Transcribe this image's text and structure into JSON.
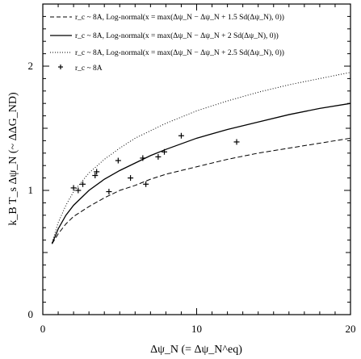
{
  "chart_data": {
    "type": "line",
    "xlabel": "Δψ_N (= Δψ_N^eq)",
    "ylabel": "k_B T_s Δψ_N (~ ΔΔG_ND)",
    "xlim": [
      0,
      20
    ],
    "ylim": [
      0,
      2.5
    ],
    "x_ticks": [
      "0",
      "10",
      "20"
    ],
    "y_ticks": [
      "0",
      "1",
      "2"
    ],
    "grid": false,
    "legend_position": "top-left",
    "series": [
      {
        "name": "r_c ~ 8A, Log-normal(x = max(Δψ_N − Δψ_N + 1.5 Sd(Δψ_N), 0))",
        "style": "dashed",
        "color": "#000000",
        "x": [
          0.6,
          1,
          1.5,
          2,
          3,
          4,
          5,
          6,
          7,
          8,
          10,
          12,
          14,
          16,
          18,
          20
        ],
        "y": [
          0.57,
          0.65,
          0.73,
          0.79,
          0.87,
          0.94,
          1.0,
          1.04,
          1.09,
          1.13,
          1.19,
          1.25,
          1.3,
          1.34,
          1.38,
          1.42
        ]
      },
      {
        "name": "r_c ~ 8A, Log-normal(x = max(Δψ_N − Δψ_N + 2  Sd(Δψ_N), 0))",
        "style": "solid",
        "color": "#000000",
        "x": [
          0.6,
          1,
          1.5,
          2,
          3,
          4,
          5,
          6,
          7,
          8,
          10,
          12,
          14,
          16,
          18,
          20
        ],
        "y": [
          0.57,
          0.69,
          0.8,
          0.88,
          1.0,
          1.09,
          1.16,
          1.22,
          1.28,
          1.33,
          1.42,
          1.49,
          1.55,
          1.61,
          1.66,
          1.7
        ]
      },
      {
        "name": "r_c ~ 8A, Log-normal(x = max(Δψ_N − Δψ_N + 2.5 Sd(Δψ_N), 0))",
        "style": "dotted",
        "color": "#000000",
        "x": [
          0.6,
          1,
          1.5,
          2,
          3,
          4,
          5,
          6,
          7,
          8,
          10,
          12,
          14,
          16,
          18,
          20
        ],
        "y": [
          0.58,
          0.74,
          0.88,
          0.99,
          1.14,
          1.25,
          1.34,
          1.42,
          1.48,
          1.54,
          1.64,
          1.72,
          1.79,
          1.85,
          1.9,
          1.95
        ]
      },
      {
        "name": "r_c ~ 8A",
        "style": "markers",
        "marker": "plus",
        "color": "#000000",
        "x": [
          2.0,
          2.3,
          2.6,
          3.4,
          3.5,
          4.3,
          4.9,
          5.7,
          6.5,
          6.7,
          7.5,
          7.9,
          9.0,
          12.6
        ],
        "y": [
          1.02,
          1.0,
          1.05,
          1.12,
          1.15,
          0.99,
          1.24,
          1.1,
          1.26,
          1.05,
          1.27,
          1.31,
          1.44,
          1.39
        ]
      }
    ]
  }
}
